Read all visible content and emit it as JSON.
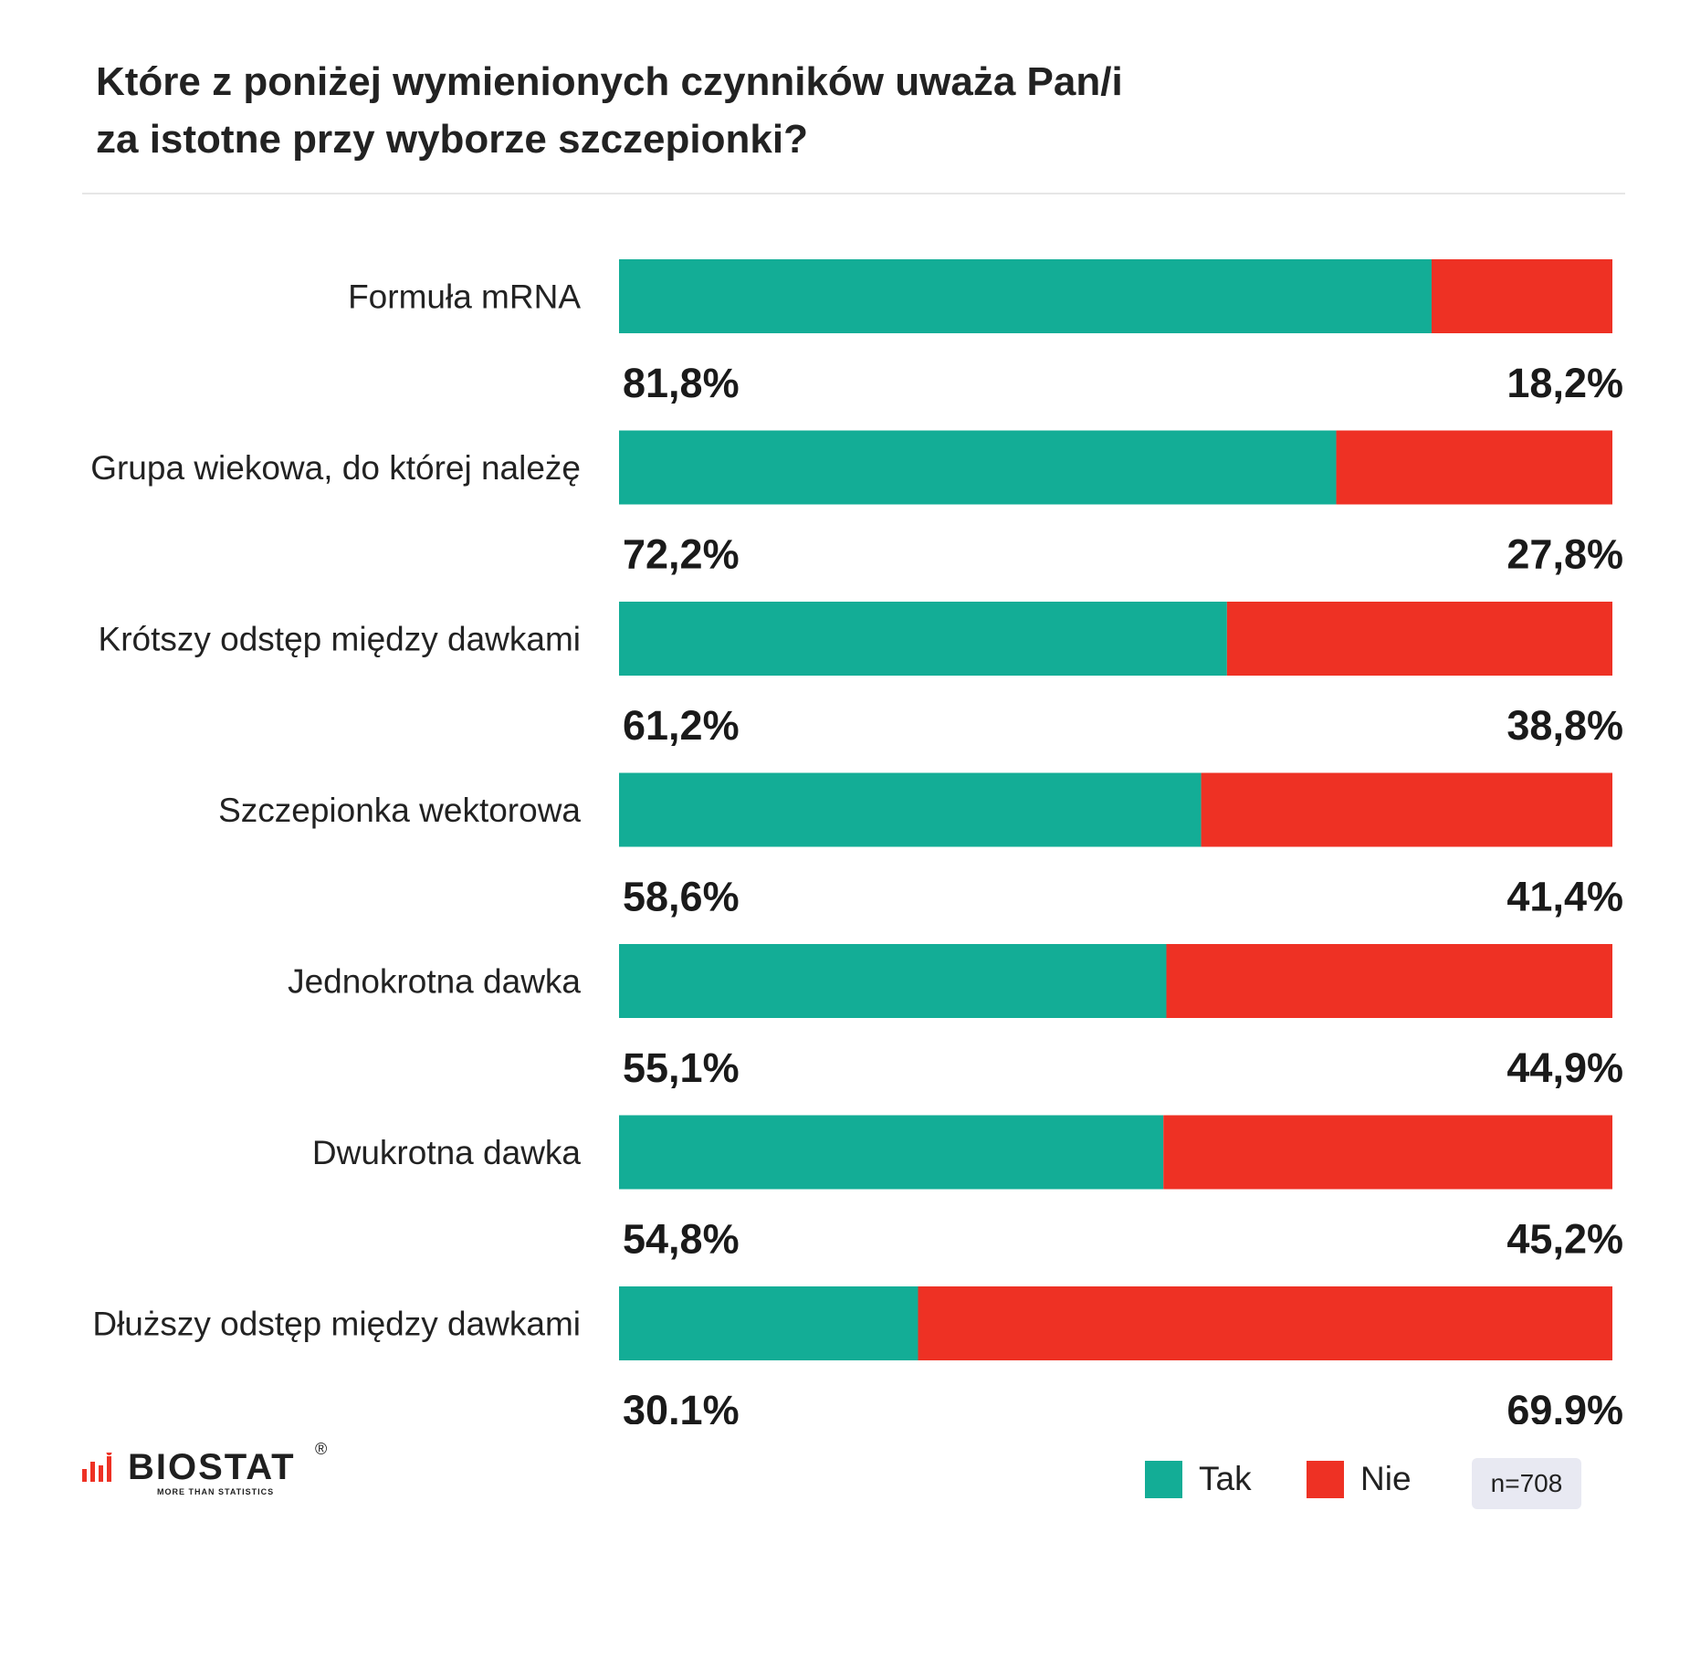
{
  "title_lines": [
    "Które z poniżej wymienionych czynników uważa Pan/i",
    "za istotne przy wyborze szczepionki?"
  ],
  "colors": {
    "tak": "#13ad96",
    "nie": "#ee3124"
  },
  "legend": {
    "tak": "Tak",
    "nie": "Nie"
  },
  "sample": "n=708",
  "logo": {
    "name": "BIOSTAT",
    "registered": "®",
    "tagline": "MORE THAN STATISTICS"
  },
  "chart_data": {
    "type": "bar",
    "orientation": "horizontal",
    "stacked": true,
    "title": "Które z poniżej wymienionych czynników uważa Pan/i za istotne przy wyborze szczepionki?",
    "categories": [
      "Formuła mRNA",
      "Grupa wiekowa, do której należę",
      "Krótszy odstęp między dawkami",
      "Szczepionka wektorowa",
      "Jednokrotna dawka",
      "Dwukrotna dawka",
      "Dłuższy odstęp między dawkami"
    ],
    "series": [
      {
        "name": "Tak",
        "color": "#13ad96",
        "values": [
          81.8,
          72.2,
          61.2,
          58.6,
          55.1,
          54.8,
          30.1
        ],
        "labels": [
          "81,8%",
          "72,2%",
          "61,2%",
          "58,6%",
          "55,1%",
          "54,8%",
          "30,1%"
        ]
      },
      {
        "name": "Nie",
        "color": "#ee3124",
        "values": [
          18.2,
          27.8,
          38.8,
          41.4,
          44.9,
          45.2,
          69.9
        ],
        "labels": [
          "18,2%",
          "27,8%",
          "38,8%",
          "41,4%",
          "44,9%",
          "45,2%",
          "69,9%"
        ]
      }
    ],
    "xlim": [
      0,
      100
    ],
    "legend_position": "bottom-right"
  }
}
